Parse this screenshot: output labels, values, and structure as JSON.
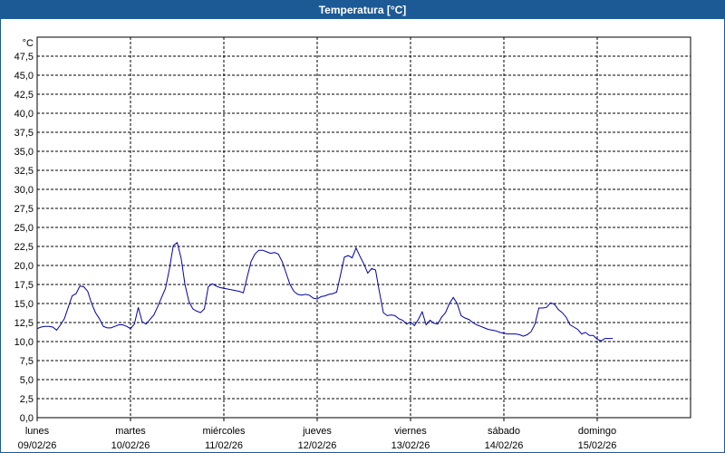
{
  "window": {
    "title": "Temperatura [°C]"
  },
  "chart_data": {
    "type": "line",
    "title": "Temperatura [°C]",
    "ylabel": "°C",
    "ylim": [
      0,
      50
    ],
    "yticks": [
      "0,0",
      "2,5",
      "5,0",
      "7,5",
      "10,0",
      "12,5",
      "15,0",
      "17,5",
      "20,0",
      "22,5",
      "25,0",
      "27,5",
      "30,0",
      "32,5",
      "35,0",
      "37,5",
      "40,0",
      "42,5",
      "45,0",
      "47,5"
    ],
    "x_range_days": [
      "2026-02-09",
      "2026-02-16"
    ],
    "x_ticks": [
      {
        "day": "lunes",
        "date": "09/02/26"
      },
      {
        "day": "martes",
        "date": "10/02/26"
      },
      {
        "day": "miércoles",
        "date": "11/02/26"
      },
      {
        "day": "jueves",
        "date": "12/02/26"
      },
      {
        "day": "viernes",
        "date": "13/02/26"
      },
      {
        "day": "sábado",
        "date": "14/02/26"
      },
      {
        "day": "domingo",
        "date": "15/02/26"
      }
    ],
    "grid": true,
    "line_color": "#0000aa",
    "series": [
      {
        "points": [
          [
            "09/02/26 00:00",
            11.7
          ],
          [
            "09/02/26 01:00",
            11.9
          ],
          [
            "09/02/26 02:00",
            12.0
          ],
          [
            "09/02/26 03:00",
            12.0
          ],
          [
            "09/02/26 04:00",
            11.9
          ],
          [
            "09/02/26 05:00",
            11.5
          ],
          [
            "09/02/26 06:00",
            12.2
          ],
          [
            "09/02/26 07:00",
            13.0
          ],
          [
            "09/02/26 08:00",
            14.5
          ],
          [
            "09/02/26 09:00",
            16.0
          ],
          [
            "09/02/26 10:00",
            16.3
          ],
          [
            "09/02/26 11:00",
            17.3
          ],
          [
            "09/02/26 12:00",
            17.2
          ],
          [
            "09/02/26 13:00",
            16.6
          ],
          [
            "09/02/26 14:00",
            15.0
          ],
          [
            "09/02/26 15:00",
            13.8
          ],
          [
            "09/02/26 16:00",
            13.0
          ],
          [
            "09/02/26 17:00",
            12.0
          ],
          [
            "09/02/26 18:00",
            11.8
          ],
          [
            "09/02/26 19:00",
            11.8
          ],
          [
            "09/02/26 20:00",
            12.0
          ],
          [
            "09/02/26 21:00",
            12.2
          ],
          [
            "09/02/26 22:00",
            12.2
          ],
          [
            "09/02/26 23:00",
            12.0
          ],
          [
            "10/02/26 00:00",
            11.7
          ],
          [
            "10/02/26 01:00",
            12.3
          ],
          [
            "10/02/26 02:00",
            14.5
          ],
          [
            "10/02/26 03:00",
            12.6
          ],
          [
            "10/02/26 04:00",
            12.3
          ],
          [
            "10/02/26 05:00",
            12.9
          ],
          [
            "10/02/26 06:00",
            13.5
          ],
          [
            "10/02/26 07:00",
            14.6
          ],
          [
            "10/02/26 08:00",
            15.8
          ],
          [
            "10/02/26 09:00",
            17.0
          ],
          [
            "10/02/26 10:00",
            19.5
          ],
          [
            "10/02/26 11:00",
            22.6
          ],
          [
            "10/02/26 12:00",
            23.0
          ],
          [
            "10/02/26 13:00",
            21.0
          ],
          [
            "10/02/26 14:00",
            17.5
          ],
          [
            "10/02/26 15:00",
            15.3
          ],
          [
            "10/02/26 16:00",
            14.3
          ],
          [
            "10/02/26 17:00",
            14.0
          ],
          [
            "10/02/26 18:00",
            13.8
          ],
          [
            "10/02/26 19:00",
            14.3
          ],
          [
            "10/02/26 20:00",
            17.2
          ],
          [
            "10/02/26 21:00",
            17.6
          ],
          [
            "10/02/26 22:00",
            17.3
          ],
          [
            "10/02/26 23:00",
            17.1
          ],
          [
            "11/02/26 00:00",
            17.0
          ],
          [
            "11/02/26 02:00",
            16.8
          ],
          [
            "11/02/26 04:00",
            16.6
          ],
          [
            "11/02/26 05:00",
            16.4
          ],
          [
            "11/02/26 06:00",
            18.5
          ],
          [
            "11/02/26 07:00",
            20.5
          ],
          [
            "11/02/26 08:00",
            21.5
          ],
          [
            "11/02/26 09:00",
            22.0
          ],
          [
            "11/02/26 10:00",
            22.0
          ],
          [
            "11/02/26 11:00",
            21.8
          ],
          [
            "11/02/26 12:00",
            21.6
          ],
          [
            "11/02/26 13:00",
            21.7
          ],
          [
            "11/02/26 14:00",
            21.5
          ],
          [
            "11/02/26 15:00",
            20.5
          ],
          [
            "11/02/26 16:00",
            19.0
          ],
          [
            "11/02/26 17:00",
            17.5
          ],
          [
            "11/02/26 18:00",
            16.6
          ],
          [
            "11/02/26 19:00",
            16.2
          ],
          [
            "11/02/26 20:00",
            16.1
          ],
          [
            "11/02/26 21:00",
            16.2
          ],
          [
            "11/02/26 22:00",
            16.1
          ],
          [
            "11/02/26 23:00",
            15.7
          ],
          [
            "12/02/26 00:00",
            15.6
          ],
          [
            "12/02/26 01:00",
            15.9
          ],
          [
            "12/02/26 02:00",
            16.0
          ],
          [
            "12/02/26 03:00",
            16.2
          ],
          [
            "12/02/26 04:00",
            16.3
          ],
          [
            "12/02/26 05:00",
            16.5
          ],
          [
            "12/02/26 06:00",
            18.8
          ],
          [
            "12/02/26 07:00",
            21.1
          ],
          [
            "12/02/26 08:00",
            21.3
          ],
          [
            "12/02/26 09:00",
            21.0
          ],
          [
            "12/02/26 10:00",
            22.3
          ],
          [
            "12/02/26 11:00",
            21.2
          ],
          [
            "12/02/26 12:00",
            20.2
          ],
          [
            "12/02/26 13:00",
            19.0
          ],
          [
            "12/02/26 14:00",
            19.6
          ],
          [
            "12/02/26 15:00",
            19.4
          ],
          [
            "12/02/26 16:00",
            16.5
          ],
          [
            "12/02/26 17:00",
            13.8
          ],
          [
            "12/02/26 18:00",
            13.4
          ],
          [
            "12/02/26 19:00",
            13.5
          ],
          [
            "12/02/26 20:00",
            13.4
          ],
          [
            "12/02/26 21:00",
            13.0
          ],
          [
            "12/02/26 22:00",
            12.8
          ],
          [
            "12/02/26 23:00",
            12.3
          ],
          [
            "13/02/26 00:00",
            12.6
          ],
          [
            "13/02/26 01:00",
            12.1
          ],
          [
            "13/02/26 02:00",
            12.9
          ],
          [
            "13/02/26 03:00",
            13.9
          ],
          [
            "13/02/26 04:00",
            12.2
          ],
          [
            "13/02/26 05:00",
            12.8
          ],
          [
            "13/02/26 06:00",
            12.4
          ],
          [
            "13/02/26 07:00",
            12.3
          ],
          [
            "13/02/26 08:00",
            13.2
          ],
          [
            "13/02/26 09:00",
            13.8
          ],
          [
            "13/02/26 10:00",
            15.0
          ],
          [
            "13/02/26 11:00",
            15.8
          ],
          [
            "13/02/26 12:00",
            15.0
          ],
          [
            "13/02/26 13:00",
            13.4
          ],
          [
            "13/02/26 14:00",
            13.1
          ],
          [
            "13/02/26 15:00",
            12.9
          ],
          [
            "13/02/26 16:00",
            12.5
          ],
          [
            "13/02/26 17:00",
            12.2
          ],
          [
            "13/02/26 18:00",
            12.0
          ],
          [
            "13/02/26 19:00",
            11.8
          ],
          [
            "13/02/26 20:00",
            11.6
          ],
          [
            "13/02/26 21:00",
            11.5
          ],
          [
            "13/02/26 22:00",
            11.4
          ],
          [
            "13/02/26 23:00",
            11.2
          ],
          [
            "14/02/26 00:00",
            11.1
          ],
          [
            "14/02/26 01:00",
            11.0
          ],
          [
            "14/02/26 02:00",
            11.0
          ],
          [
            "14/02/26 03:00",
            11.0
          ],
          [
            "14/02/26 04:00",
            10.9
          ],
          [
            "14/02/26 05:00",
            10.7
          ],
          [
            "14/02/26 06:00",
            10.9
          ],
          [
            "14/02/26 07:00",
            11.3
          ],
          [
            "14/02/26 08:00",
            12.3
          ],
          [
            "14/02/26 09:00",
            14.4
          ],
          [
            "14/02/26 10:00",
            14.4
          ],
          [
            "14/02/26 11:00",
            14.5
          ],
          [
            "14/02/26 12:00",
            15.1
          ],
          [
            "14/02/26 13:00",
            14.9
          ],
          [
            "14/02/26 14:00",
            14.2
          ],
          [
            "14/02/26 15:00",
            13.8
          ],
          [
            "14/02/26 16:00",
            13.2
          ],
          [
            "14/02/26 17:00",
            12.2
          ],
          [
            "14/02/26 18:00",
            11.9
          ],
          [
            "14/02/26 19:00",
            11.6
          ],
          [
            "14/02/26 20:00",
            11.0
          ],
          [
            "14/02/26 21:00",
            11.2
          ],
          [
            "14/02/26 22:00",
            10.8
          ],
          [
            "14/02/26 23:00",
            10.8
          ],
          [
            "15/02/26 00:00",
            10.3
          ],
          [
            "15/02/26 01:00",
            10.1
          ],
          [
            "15/02/26 02:00",
            10.4
          ],
          [
            "15/02/26 03:00",
            10.4
          ],
          [
            "15/02/26 04:00",
            10.4
          ]
        ]
      }
    ]
  }
}
